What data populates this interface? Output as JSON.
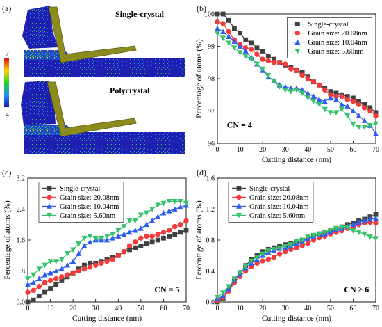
{
  "colors": {
    "single": "#404040",
    "g2008": "#f23c3c",
    "g1004": "#2d5cf0",
    "g560": "#36c26a"
  },
  "panel_a": {
    "label": "(a)",
    "top_title": "Single-crystal",
    "bottom_title": "Polycrystal",
    "colorbar_max": "7",
    "colorbar_min": "4"
  },
  "chart_data": [
    {
      "panel": "(b)",
      "type": "line",
      "xlabel": "Cutting distance (nm)",
      "ylabel": "Percentage of atoms (%)",
      "annotation": "CN = 4",
      "xlim": [
        0,
        70
      ],
      "ylim": [
        96,
        100
      ],
      "xticks": [
        0,
        10,
        20,
        30,
        40,
        50,
        60,
        70
      ],
      "yticks": [
        96,
        97,
        98,
        99,
        100
      ],
      "legend": "top-right",
      "series": [
        {
          "name": "Single-crystal",
          "marker": "square",
          "colorKey": "single",
          "x": [
            0,
            2.5,
            5,
            7.5,
            10,
            12.5,
            15,
            17.5,
            20,
            22.5,
            25,
            27.5,
            30,
            32.5,
            35,
            37.5,
            40,
            42.5,
            45,
            47.5,
            50,
            52.5,
            55,
            57.5,
            60,
            62.5,
            65,
            67.5,
            70
          ],
          "values": [
            100,
            100,
            99.8,
            99.55,
            99.4,
            99.2,
            99.1,
            98.95,
            98.85,
            98.7,
            98.6,
            98.5,
            98.4,
            98.35,
            98.25,
            98.2,
            98.05,
            97.9,
            97.8,
            97.7,
            97.6,
            97.55,
            97.5,
            97.45,
            97.4,
            97.3,
            97.2,
            97.1,
            96.95
          ]
        },
        {
          "name": "Grain size: 20.08nm",
          "marker": "circle",
          "colorKey": "g2008",
          "x": [
            0,
            2.5,
            5,
            7.5,
            10,
            12.5,
            15,
            17.5,
            20,
            22.5,
            25,
            27.5,
            30,
            32.5,
            35,
            37.5,
            40,
            42.5,
            45,
            47.5,
            50,
            52.5,
            55,
            57.5,
            60,
            62.5,
            65,
            67.5,
            70
          ],
          "values": [
            99.75,
            99.7,
            99.45,
            99.2,
            99.05,
            98.95,
            98.9,
            98.75,
            98.6,
            98.55,
            98.5,
            98.5,
            98.45,
            98.3,
            98.25,
            98.1,
            98,
            97.9,
            97.8,
            97.65,
            97.5,
            97.45,
            97.45,
            97.35,
            97.3,
            97.2,
            97.1,
            97,
            96.85
          ]
        },
        {
          "name": "Grain size: 10.04nm",
          "marker": "triangle",
          "colorKey": "g1004",
          "x": [
            0,
            2.5,
            5,
            7.5,
            10,
            12.5,
            15,
            17.5,
            20,
            22.5,
            25,
            27.5,
            30,
            32.5,
            35,
            37.5,
            40,
            42.5,
            45,
            47.5,
            50,
            52.5,
            55,
            57.5,
            60,
            62.5,
            65,
            67.5,
            70
          ],
          "values": [
            99.55,
            99.45,
            99.3,
            99.15,
            99,
            98.85,
            98.65,
            98.45,
            98.25,
            98.05,
            97.95,
            97.8,
            97.75,
            97.7,
            97.7,
            97.65,
            97.55,
            97.45,
            97.35,
            97.3,
            97.4,
            97.35,
            97.2,
            97.15,
            97,
            96.85,
            96.7,
            96.55,
            96.3
          ]
        },
        {
          "name": "Grain size: 5.60nm",
          "marker": "triangle-down",
          "colorKey": "g560",
          "x": [
            0,
            2.5,
            5,
            7.5,
            10,
            12.5,
            15,
            17.5,
            20,
            22.5,
            25,
            27.5,
            30,
            32.5,
            35,
            37.5,
            40,
            42.5,
            45,
            47.5,
            50,
            52.5,
            55,
            57.5,
            60,
            62.5,
            65,
            67.5,
            70
          ],
          "values": [
            99.4,
            99.25,
            99.1,
            98.95,
            98.8,
            98.7,
            98.6,
            98.45,
            98.3,
            98.1,
            97.9,
            97.75,
            97.65,
            97.6,
            97.65,
            97.55,
            97.4,
            97.3,
            97.2,
            97.05,
            96.95,
            96.95,
            97.05,
            96.85,
            96.6,
            96.5,
            96.5,
            96.55,
            96.6
          ]
        }
      ]
    },
    {
      "panel": "(c)",
      "type": "line",
      "xlabel": "Cutting distance (nm)",
      "ylabel": "Percentage of atoms (%)",
      "annotation": "CN = 5",
      "xlim": [
        0,
        70
      ],
      "ylim": [
        0,
        3.2
      ],
      "xticks": [
        0,
        10,
        20,
        30,
        40,
        50,
        60,
        70
      ],
      "yticks": [
        0,
        0.8,
        1.6,
        2.4,
        3.2
      ],
      "legend": "top-left",
      "series": [
        {
          "name": "Single-crystal",
          "marker": "square",
          "colorKey": "single",
          "x": [
            0,
            2.5,
            5,
            7.5,
            10,
            12.5,
            15,
            17.5,
            20,
            22.5,
            25,
            27.5,
            30,
            32.5,
            35,
            37.5,
            40,
            42.5,
            45,
            47.5,
            50,
            52.5,
            55,
            57.5,
            60,
            62.5,
            65,
            67.5,
            70
          ],
          "values": [
            0,
            0.05,
            0.15,
            0.25,
            0.35,
            0.45,
            0.55,
            0.65,
            0.75,
            0.85,
            0.95,
            1.0,
            1.0,
            1.05,
            1.1,
            1.15,
            1.2,
            1.3,
            1.35,
            1.4,
            1.45,
            1.5,
            1.55,
            1.6,
            1.65,
            1.7,
            1.75,
            1.8,
            1.85
          ]
        },
        {
          "name": "Grain size: 20.08nm",
          "marker": "circle",
          "colorKey": "g2008",
          "x": [
            0,
            2.5,
            5,
            7.5,
            10,
            12.5,
            15,
            17.5,
            20,
            22.5,
            25,
            27.5,
            30,
            32.5,
            35,
            37.5,
            40,
            42.5,
            45,
            47.5,
            50,
            52.5,
            55,
            57.5,
            60,
            62.5,
            65,
            67.5,
            70
          ],
          "values": [
            0.25,
            0.3,
            0.4,
            0.5,
            0.55,
            0.6,
            0.65,
            0.7,
            0.75,
            0.8,
            0.85,
            0.9,
            0.95,
            1.0,
            1.05,
            1.1,
            1.2,
            1.3,
            1.45,
            1.55,
            1.65,
            1.7,
            1.7,
            1.75,
            1.8,
            1.85,
            1.95,
            2.0,
            2.1
          ]
        },
        {
          "name": "Grain size: 10.04nm",
          "marker": "triangle",
          "colorKey": "g1004",
          "x": [
            0,
            2.5,
            5,
            7.5,
            10,
            12.5,
            15,
            17.5,
            20,
            22.5,
            25,
            27.5,
            30,
            32.5,
            35,
            37.5,
            40,
            42.5,
            45,
            47.5,
            50,
            52.5,
            55,
            57.5,
            60,
            62.5,
            65,
            67.5,
            70
          ],
          "values": [
            0.45,
            0.5,
            0.6,
            0.7,
            0.75,
            0.8,
            0.85,
            0.95,
            1.05,
            1.25,
            1.45,
            1.55,
            1.6,
            1.6,
            1.6,
            1.65,
            1.7,
            1.75,
            1.8,
            1.85,
            1.9,
            2.0,
            2.1,
            2.2,
            2.3,
            2.35,
            2.4,
            2.45,
            2.5
          ]
        },
        {
          "name": "Grain size: 5.60nm",
          "marker": "triangle-down",
          "colorKey": "g560",
          "x": [
            0,
            2.5,
            5,
            7.5,
            10,
            12.5,
            15,
            17.5,
            20,
            22.5,
            25,
            27.5,
            30,
            32.5,
            35,
            37.5,
            40,
            42.5,
            45,
            47.5,
            50,
            52.5,
            55,
            57.5,
            60,
            62.5,
            65,
            67.5,
            70
          ],
          "values": [
            0.6,
            0.7,
            0.85,
            0.95,
            1.05,
            1.05,
            1.1,
            1.25,
            1.35,
            1.5,
            1.65,
            1.7,
            1.65,
            1.65,
            1.7,
            1.75,
            1.85,
            1.95,
            2.1,
            2.1,
            2.25,
            2.3,
            2.4,
            2.5,
            2.55,
            2.6,
            2.6,
            2.6,
            2.55
          ]
        }
      ]
    },
    {
      "panel": "(d)",
      "type": "line",
      "xlabel": "Cutting distance (nm)",
      "ylabel": "Percentage of atoms (%)",
      "annotation": "CN ≥ 6",
      "xlim": [
        0,
        70
      ],
      "ylim": [
        0,
        1.6
      ],
      "xticks": [
        0,
        10,
        20,
        30,
        40,
        50,
        60,
        70
      ],
      "yticks": [
        0,
        0.4,
        0.8,
        1.2,
        1.6
      ],
      "legend": "top-left",
      "series": [
        {
          "name": "Single-crystal",
          "marker": "square",
          "colorKey": "single",
          "x": [
            0,
            2.5,
            5,
            7.5,
            10,
            12.5,
            15,
            17.5,
            20,
            22.5,
            25,
            27.5,
            30,
            32.5,
            35,
            37.5,
            40,
            42.5,
            45,
            47.5,
            50,
            52.5,
            55,
            57.5,
            60,
            62.5,
            65,
            67.5,
            70
          ],
          "values": [
            0,
            0.05,
            0.15,
            0.27,
            0.38,
            0.47,
            0.55,
            0.6,
            0.65,
            0.68,
            0.7,
            0.72,
            0.74,
            0.76,
            0.78,
            0.8,
            0.83,
            0.86,
            0.88,
            0.9,
            0.92,
            0.95,
            0.97,
            1.0,
            1.02,
            1.05,
            1.07,
            1.1,
            1.13
          ]
        },
        {
          "name": "Grain size: 20.08nm",
          "marker": "circle",
          "colorKey": "g2008",
          "x": [
            0,
            2.5,
            5,
            7.5,
            10,
            12.5,
            15,
            17.5,
            20,
            22.5,
            25,
            27.5,
            30,
            32.5,
            35,
            37.5,
            40,
            42.5,
            45,
            47.5,
            50,
            52.5,
            55,
            57.5,
            60,
            62.5,
            65,
            67.5,
            70
          ],
          "values": [
            0.02,
            0.06,
            0.14,
            0.25,
            0.33,
            0.4,
            0.46,
            0.5,
            0.53,
            0.55,
            0.58,
            0.62,
            0.65,
            0.68,
            0.7,
            0.73,
            0.76,
            0.8,
            0.83,
            0.85,
            0.88,
            0.9,
            0.92,
            0.95,
            0.97,
            1.0,
            1.02,
            1.03,
            1.02
          ]
        },
        {
          "name": "Grain size: 10.04nm",
          "marker": "triangle",
          "colorKey": "g1004",
          "x": [
            0,
            2.5,
            5,
            7.5,
            10,
            12.5,
            15,
            17.5,
            20,
            22.5,
            25,
            27.5,
            30,
            32.5,
            35,
            37.5,
            40,
            42.5,
            45,
            47.5,
            50,
            52.5,
            55,
            57.5,
            60,
            62.5,
            65,
            67.5,
            70
          ],
          "values": [
            0.04,
            0.08,
            0.17,
            0.28,
            0.36,
            0.44,
            0.5,
            0.55,
            0.6,
            0.64,
            0.66,
            0.69,
            0.7,
            0.72,
            0.75,
            0.78,
            0.82,
            0.85,
            0.87,
            0.88,
            0.9,
            0.93,
            0.95,
            0.98,
            1.0,
            1.03,
            1.05,
            1.07,
            1.08
          ]
        },
        {
          "name": "Grain size: 5.60nm",
          "marker": "triangle-down",
          "colorKey": "g560",
          "x": [
            0,
            2.5,
            5,
            7.5,
            10,
            12.5,
            15,
            17.5,
            20,
            22.5,
            25,
            27.5,
            30,
            32.5,
            35,
            37.5,
            40,
            42.5,
            45,
            47.5,
            50,
            52.5,
            55,
            57.5,
            60,
            62.5,
            65,
            67.5,
            70
          ],
          "values": [
            0.06,
            0.12,
            0.2,
            0.3,
            0.38,
            0.46,
            0.53,
            0.58,
            0.62,
            0.66,
            0.68,
            0.7,
            0.72,
            0.74,
            0.78,
            0.8,
            0.84,
            0.86,
            0.87,
            0.9,
            0.93,
            0.95,
            0.96,
            0.96,
            0.92,
            0.9,
            0.88,
            0.84,
            0.82
          ]
        }
      ]
    }
  ]
}
